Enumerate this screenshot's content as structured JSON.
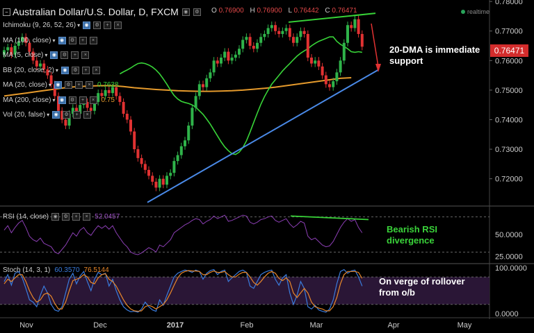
{
  "header": {
    "title": "Australian Dollar/U.S. Dollar, D, FXCM",
    "ohlc": {
      "o_label": "O",
      "o": "0.76900",
      "h_label": "H",
      "h": "0.76900",
      "l_label": "L",
      "l": "0.76442",
      "c_label": "C",
      "c": "0.76471"
    },
    "realtime_label": "realtime"
  },
  "indicators": [
    {
      "label": "Ichimoku (9, 26, 52, 26)",
      "value": ""
    },
    {
      "label": "MA (100, close)",
      "value": ""
    },
    {
      "label": "MA (5, close)",
      "value": ""
    },
    {
      "label": "BB (20, close, 2)",
      "value": ""
    },
    {
      "label": "MA (20, close)",
      "value": "0.7628",
      "color": "#38d438"
    },
    {
      "label": "MA (200, close)",
      "value": "0.75",
      "color": "#e59a2c"
    },
    {
      "label": "Vol (20, false)",
      "value": ""
    }
  ],
  "rsi_panel": {
    "label": "RSI (14, close)",
    "value": "52.0457",
    "value_color": "#9b4fc2"
  },
  "stoch_panel": {
    "label": "Stoch (14, 3, 1)",
    "value_k": "60.3570",
    "value_d": "76.5144",
    "k_color": "#3a7bdc",
    "d_color": "#e8872a"
  },
  "annotations": {
    "main": "20-DMA is immediate support",
    "rsi": "Bearish RSI divergence",
    "stoch": "On verge of rollover from o/b"
  },
  "colors": {
    "up": "#2fb34a",
    "down": "#e13232",
    "ma20": "#38d438",
    "ma200": "#e59a2c",
    "trendline": "#4a8ae8",
    "rsi": "#8c3fb5",
    "stoch_bg": "#2a1636"
  },
  "chart_data": [
    {
      "type": "candlestick",
      "title": "Australian Dollar/U.S. Dollar, D, FXCM",
      "ylim": [
        0.711,
        0.7805
      ],
      "y_ticks": [
        "0.78000",
        "0.77000",
        "0.76000",
        "0.75000",
        "0.74000",
        "0.73000",
        "0.72000"
      ],
      "last_price": "0.76471",
      "x_ticks": [
        "Nov",
        "Dec",
        "2017",
        "Feb",
        "Mar",
        "Apr",
        "May"
      ],
      "close": [
        0.7635,
        0.7645,
        0.762,
        0.765,
        0.7665,
        0.768,
        0.766,
        0.763,
        0.76,
        0.758,
        0.759,
        0.757,
        0.755,
        0.752,
        0.748,
        0.743,
        0.74,
        0.738,
        0.742,
        0.744,
        0.742,
        0.745,
        0.746,
        0.744,
        0.743,
        0.746,
        0.749,
        0.748,
        0.75,
        0.749,
        0.751,
        0.748,
        0.746,
        0.742,
        0.74,
        0.736,
        0.73,
        0.727,
        0.725,
        0.723,
        0.721,
        0.719,
        0.717,
        0.72,
        0.718,
        0.721,
        0.722,
        0.726,
        0.728,
        0.731,
        0.733,
        0.738,
        0.744,
        0.748,
        0.752,
        0.751,
        0.754,
        0.756,
        0.76,
        0.759,
        0.761,
        0.763,
        0.76,
        0.761,
        0.762,
        0.764,
        0.767,
        0.768,
        0.765,
        0.764,
        0.766,
        0.768,
        0.769,
        0.771,
        0.772,
        0.77,
        0.769,
        0.77,
        0.771,
        0.768,
        0.766,
        0.768,
        0.77,
        0.769,
        0.761,
        0.759,
        0.76,
        0.758,
        0.755,
        0.752,
        0.751,
        0.753,
        0.756,
        0.76,
        0.766,
        0.772,
        0.771,
        0.774,
        0.769,
        0.7647
      ],
      "ma20": [
        0.7555,
        0.7562,
        0.7568,
        0.7575,
        0.7583,
        0.759,
        0.7592,
        0.759,
        0.7585,
        0.7578,
        0.7568,
        0.7555,
        0.7538,
        0.752,
        0.75,
        0.7482,
        0.747,
        0.7462,
        0.7458,
        0.7455,
        0.745,
        0.7442,
        0.743,
        0.7418,
        0.7402,
        0.7385,
        0.7365,
        0.7345,
        0.7325,
        0.7308,
        0.7295,
        0.7285,
        0.7282,
        0.729,
        0.7305,
        0.7328,
        0.7358,
        0.739,
        0.7422,
        0.7452,
        0.7478,
        0.75,
        0.752,
        0.7535,
        0.755,
        0.7565,
        0.7578,
        0.759,
        0.7603,
        0.7615,
        0.7625,
        0.7633,
        0.764,
        0.765,
        0.7658,
        0.7665,
        0.767,
        0.7675,
        0.768,
        0.768,
        0.7665,
        0.7655,
        0.7648,
        0.764,
        0.763,
        0.7628,
        0.763,
        0.7628
      ],
      "ma200": [
        0.748,
        0.7485,
        0.749,
        0.7495,
        0.75,
        0.7505,
        0.751,
        0.7512,
        0.7514,
        0.7515,
        0.7515,
        0.7512,
        0.7508,
        0.7505,
        0.7502,
        0.75,
        0.7498,
        0.7497,
        0.7496,
        0.7496,
        0.7497,
        0.7498,
        0.75,
        0.7503,
        0.7506,
        0.751,
        0.7515,
        0.752,
        0.7525,
        0.753,
        0.7535,
        0.754,
        0.7542
      ],
      "ma20_value": "0.7628",
      "ma200_value": "0.75",
      "trendline": [
        [
          0.712,
          0.757
        ]
      ],
      "resistance_line": [
        [
          0.773,
          0.776
        ]
      ]
    },
    {
      "type": "line",
      "title": "RSI (14, close)",
      "value": "52.0457",
      "y_ticks": [
        "50.0000",
        "25.0000"
      ],
      "ylim": [
        20,
        80
      ],
      "values": [
        55,
        60,
        52,
        58,
        63,
        66,
        58,
        48,
        44,
        42,
        46,
        40,
        38,
        36,
        30,
        28,
        33,
        38,
        45,
        52,
        48,
        55,
        58,
        52,
        49,
        55,
        60,
        57,
        60,
        56,
        60,
        52,
        46,
        40,
        36,
        30,
        28,
        27,
        29,
        32,
        35,
        33,
        30,
        38,
        36,
        40,
        44,
        52,
        55,
        58,
        61,
        63,
        66,
        68,
        67,
        62,
        65,
        67,
        71,
        68,
        70,
        72,
        65,
        66,
        68,
        70,
        72,
        71,
        64,
        62,
        64,
        67,
        68,
        70,
        71,
        66,
        64,
        66,
        68,
        62,
        58,
        61,
        65,
        63,
        48,
        44,
        46,
        42,
        38,
        36,
        37,
        42,
        50,
        58,
        64,
        68,
        65,
        67,
        58,
        52
      ],
      "divergence_line": [
        71,
        67
      ]
    },
    {
      "type": "line",
      "title": "Stoch (14, 3, 1)",
      "y_ticks": [
        "100.0000",
        "0.0000"
      ],
      "ylim": [
        0,
        100
      ],
      "k_value": "60.3570",
      "d_value": "76.5144",
      "k": [
        70,
        85,
        62,
        88,
        92,
        78,
        55,
        30,
        25,
        15,
        40,
        60,
        45,
        20,
        8,
        5,
        15,
        45,
        75,
        88,
        65,
        82,
        92,
        70,
        50,
        75,
        90,
        85,
        88,
        60,
        75,
        50,
        30,
        15,
        8,
        4,
        5,
        3,
        10,
        25,
        15,
        8,
        5,
        30,
        18,
        40,
        60,
        80,
        88,
        92,
        95,
        93,
        90,
        95,
        92,
        75,
        88,
        94,
        96,
        85,
        92,
        95,
        70,
        78,
        85,
        92,
        95,
        90,
        60,
        55,
        70,
        85,
        90,
        93,
        95,
        75,
        62,
        78,
        85,
        45,
        20,
        40,
        70,
        55,
        15,
        10,
        18,
        8,
        5,
        3,
        10,
        30,
        65,
        92,
        96,
        88,
        93,
        95,
        80,
        60
      ],
      "d": [
        65,
        75,
        70,
        78,
        85,
        85,
        70,
        50,
        35,
        25,
        30,
        42,
        45,
        38,
        22,
        10,
        10,
        25,
        50,
        72,
        75,
        78,
        85,
        80,
        68,
        65,
        78,
        85,
        87,
        75,
        70,
        60,
        45,
        30,
        18,
        10,
        6,
        5,
        6,
        15,
        18,
        15,
        10,
        15,
        20,
        30,
        45,
        62,
        78,
        88,
        92,
        94,
        93,
        93,
        92,
        85,
        85,
        90,
        93,
        90,
        90,
        92,
        85,
        80,
        80,
        86,
        90,
        90,
        80,
        68,
        62,
        70,
        80,
        88,
        92,
        88,
        77,
        72,
        78,
        70,
        45,
        35,
        45,
        55,
        45,
        25,
        15,
        12,
        10,
        6,
        6,
        15,
        35,
        65,
        85,
        92,
        92,
        92,
        90,
        77
      ]
    }
  ]
}
